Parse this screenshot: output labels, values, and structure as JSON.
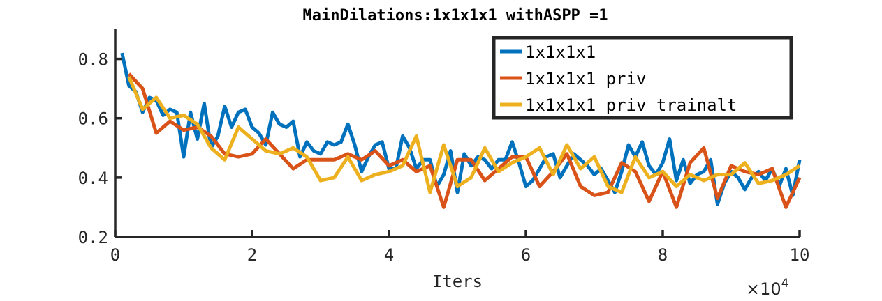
{
  "chart_data": {
    "type": "line",
    "title": "MainDilations:1x1x1x1 withASPP =1",
    "xlabel": "Iters",
    "ylabel": "",
    "x_exponent_label": {
      "base": "×10",
      "exponent": "4"
    },
    "xlim": [
      0,
      10
    ],
    "ylim": [
      0.2,
      0.9
    ],
    "xticks": [
      0,
      2,
      4,
      6,
      8,
      10
    ],
    "xtick_labels": [
      "0",
      "2",
      "4",
      "6",
      "8",
      "10"
    ],
    "yticks": [
      0.2,
      0.4,
      0.6,
      0.8
    ],
    "ytick_labels": [
      "0.2",
      "0.4",
      "0.6",
      "0.8"
    ],
    "grid": false,
    "legend_position": "top-right",
    "series": [
      {
        "name": "1x1x1x1",
        "color": "#0072BD",
        "x": [
          0.1,
          0.2,
          0.3,
          0.4,
          0.5,
          0.6,
          0.7,
          0.8,
          0.9,
          1.0,
          1.1,
          1.2,
          1.3,
          1.4,
          1.5,
          1.6,
          1.7,
          1.8,
          1.9,
          2.0,
          2.1,
          2.2,
          2.3,
          2.4,
          2.5,
          2.6,
          2.7,
          2.8,
          2.9,
          3.0,
          3.1,
          3.2,
          3.3,
          3.4,
          3.5,
          3.6,
          3.7,
          3.8,
          3.9,
          4.0,
          4.1,
          4.2,
          4.3,
          4.4,
          4.5,
          4.6,
          4.7,
          4.8,
          4.9,
          5.0,
          5.1,
          5.2,
          5.3,
          5.4,
          5.5,
          5.6,
          5.7,
          5.8,
          5.9,
          6.0,
          6.1,
          6.2,
          6.3,
          6.4,
          6.5,
          6.6,
          6.7,
          6.8,
          6.9,
          7.0,
          7.1,
          7.2,
          7.3,
          7.4,
          7.5,
          7.6,
          7.7,
          7.8,
          7.9,
          8.0,
          8.1,
          8.2,
          8.3,
          8.4,
          8.5,
          8.6,
          8.7,
          8.8,
          8.9,
          9.0,
          9.1,
          9.2,
          9.3,
          9.4,
          9.5,
          9.6,
          9.7,
          9.8,
          9.9,
          10.0
        ],
        "y": [
          0.82,
          0.71,
          0.69,
          0.62,
          0.67,
          0.66,
          0.61,
          0.63,
          0.62,
          0.47,
          0.62,
          0.53,
          0.65,
          0.5,
          0.54,
          0.64,
          0.57,
          0.62,
          0.63,
          0.57,
          0.55,
          0.51,
          0.62,
          0.58,
          0.57,
          0.59,
          0.47,
          0.52,
          0.49,
          0.48,
          0.52,
          0.51,
          0.52,
          0.58,
          0.51,
          0.42,
          0.47,
          0.51,
          0.52,
          0.43,
          0.43,
          0.54,
          0.5,
          0.43,
          0.46,
          0.46,
          0.37,
          0.41,
          0.49,
          0.35,
          0.48,
          0.44,
          0.47,
          0.46,
          0.43,
          0.46,
          0.46,
          0.52,
          0.45,
          0.37,
          0.39,
          0.43,
          0.47,
          0.48,
          0.4,
          0.44,
          0.48,
          0.46,
          0.44,
          0.41,
          0.43,
          0.39,
          0.35,
          0.42,
          0.51,
          0.47,
          0.52,
          0.44,
          0.41,
          0.45,
          0.53,
          0.39,
          0.46,
          0.38,
          0.41,
          0.42,
          0.46,
          0.31,
          0.38,
          0.42,
          0.4,
          0.36,
          0.4,
          0.42,
          0.39,
          0.43,
          0.37,
          0.43,
          0.34,
          0.46
        ]
      },
      {
        "name": "1x1x1x1 priv",
        "color": "#D95319",
        "x": [
          0.2,
          0.4,
          0.6,
          0.8,
          1.0,
          1.2,
          1.4,
          1.6,
          1.8,
          2.0,
          2.2,
          2.4,
          2.6,
          2.8,
          3.0,
          3.2,
          3.4,
          3.6,
          3.8,
          4.0,
          4.2,
          4.4,
          4.6,
          4.8,
          5.0,
          5.2,
          5.4,
          5.6,
          5.8,
          6.0,
          6.2,
          6.4,
          6.6,
          6.8,
          7.0,
          7.2,
          7.4,
          7.6,
          7.8,
          8.0,
          8.2,
          8.4,
          8.6,
          8.8,
          9.0,
          9.2,
          9.4,
          9.6,
          9.8,
          10.0
        ],
        "y": [
          0.75,
          0.7,
          0.55,
          0.59,
          0.56,
          0.57,
          0.54,
          0.48,
          0.47,
          0.48,
          0.53,
          0.48,
          0.43,
          0.46,
          0.46,
          0.46,
          0.48,
          0.46,
          0.49,
          0.44,
          0.46,
          0.42,
          0.44,
          0.3,
          0.46,
          0.46,
          0.39,
          0.43,
          0.47,
          0.47,
          0.37,
          0.42,
          0.48,
          0.37,
          0.34,
          0.35,
          0.45,
          0.42,
          0.32,
          0.42,
          0.3,
          0.45,
          0.5,
          0.33,
          0.44,
          0.42,
          0.41,
          0.43,
          0.3,
          0.4
        ]
      },
      {
        "name": "1x1x1x1 priv trainalt",
        "color": "#EDB120",
        "x": [
          0.2,
          0.4,
          0.6,
          0.8,
          1.0,
          1.2,
          1.4,
          1.6,
          1.8,
          2.0,
          2.2,
          2.4,
          2.6,
          2.8,
          3.0,
          3.2,
          3.4,
          3.6,
          3.8,
          4.0,
          4.2,
          4.4,
          4.6,
          4.8,
          5.0,
          5.2,
          5.4,
          5.6,
          5.8,
          6.0,
          6.2,
          6.4,
          6.6,
          6.8,
          7.0,
          7.2,
          7.4,
          7.6,
          7.8,
          8.0,
          8.2,
          8.4,
          8.6,
          8.8,
          9.0,
          9.2,
          9.4,
          9.6,
          9.8,
          10.0
        ],
        "y": [
          0.74,
          0.63,
          0.67,
          0.6,
          0.61,
          0.58,
          0.5,
          0.46,
          0.57,
          0.53,
          0.49,
          0.48,
          0.5,
          0.47,
          0.39,
          0.4,
          0.47,
          0.39,
          0.41,
          0.42,
          0.44,
          0.54,
          0.35,
          0.51,
          0.37,
          0.4,
          0.5,
          0.42,
          0.45,
          0.47,
          0.5,
          0.41,
          0.51,
          0.43,
          0.47,
          0.37,
          0.35,
          0.47,
          0.4,
          0.42,
          0.37,
          0.41,
          0.39,
          0.41,
          0.41,
          0.45,
          0.38,
          0.39,
          0.41,
          0.44
        ]
      }
    ]
  }
}
